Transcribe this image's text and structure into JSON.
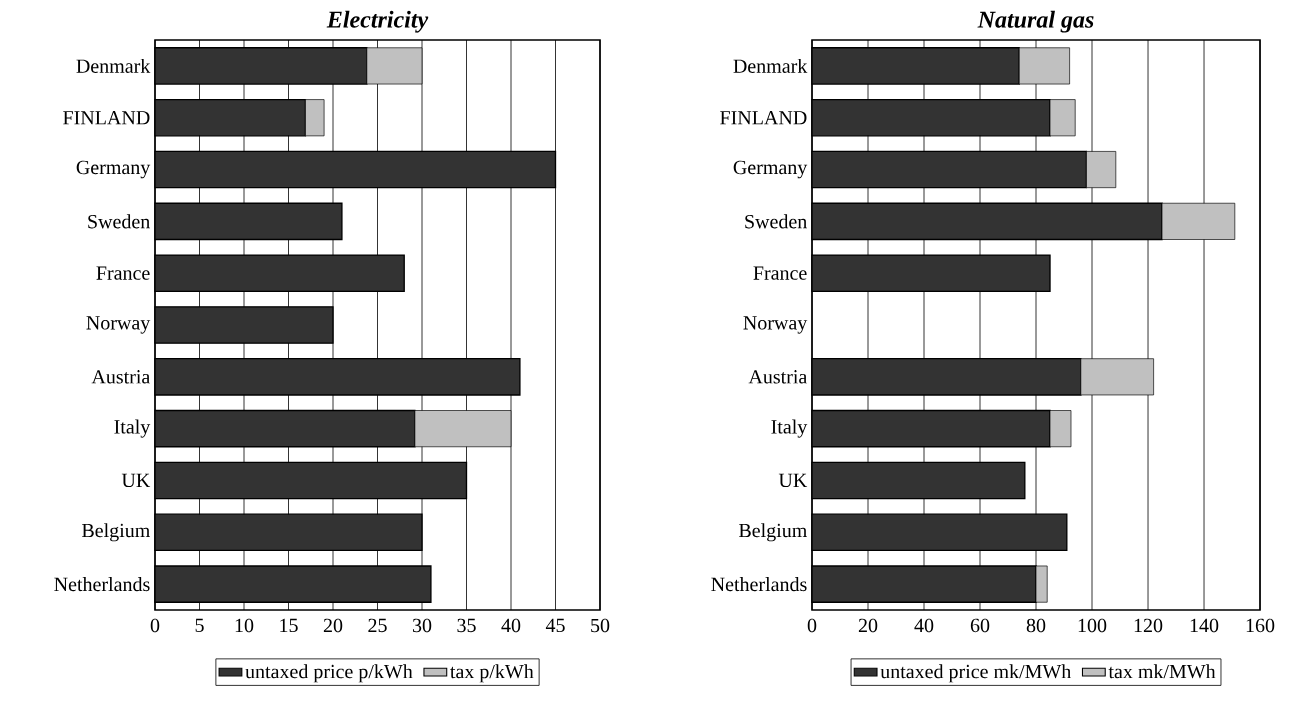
{
  "chart_data": [
    {
      "type": "bar",
      "title": "Electricity",
      "orientation": "horizontal",
      "stacked": true,
      "grid": "x",
      "legend": "bottom",
      "categories": [
        "Denmark",
        "FINLAND",
        "Germany",
        "Sweden",
        "France",
        "Norway",
        "Austria",
        "Italy",
        "UK",
        "Belgium",
        "Netherlands"
      ],
      "xlim": [
        0,
        50
      ],
      "xticks": [
        0,
        5,
        10,
        15,
        20,
        25,
        30,
        35,
        40,
        45,
        50
      ],
      "series": [
        {
          "name": "untaxed price  p/kWh",
          "color": "#333333",
          "values": [
            23.8,
            16.9,
            45,
            21,
            28,
            20,
            41,
            29.2,
            35,
            30,
            31
          ]
        },
        {
          "name": "tax p/kWh",
          "color": "#c0c0c0",
          "values": [
            6.2,
            2.1,
            null,
            null,
            null,
            null,
            null,
            10.8,
            null,
            null,
            null
          ]
        }
      ]
    },
    {
      "type": "bar",
      "title": "Natural gas",
      "orientation": "horizontal",
      "stacked": true,
      "grid": "x",
      "legend": "bottom",
      "categories": [
        "Denmark",
        "FINLAND",
        "Germany",
        "Sweden",
        "France",
        "Norway",
        "Austria",
        "Italy",
        "UK",
        "Belgium",
        "Netherlands"
      ],
      "xlim": [
        0,
        160
      ],
      "xticks": [
        0,
        20,
        40,
        60,
        80,
        100,
        120,
        140,
        160
      ],
      "series": [
        {
          "name": "untaxed price  mk/MWh",
          "color": "#333333",
          "values": [
            74,
            85,
            98,
            125,
            85,
            null,
            96,
            85,
            76,
            91,
            80
          ]
        },
        {
          "name": "tax mk/MWh",
          "color": "#c0c0c0",
          "values": [
            18,
            9,
            10.5,
            26,
            null,
            null,
            26,
            7.5,
            null,
            null,
            4
          ]
        }
      ]
    }
  ]
}
